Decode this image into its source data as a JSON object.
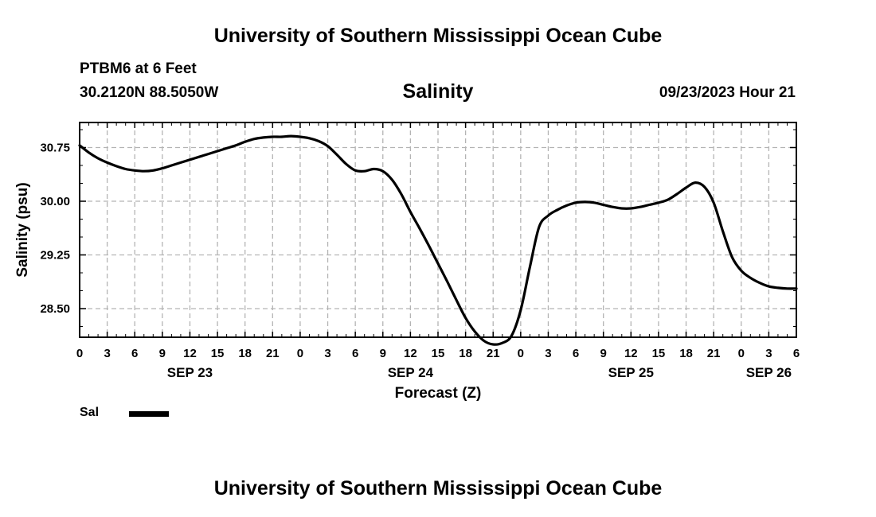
{
  "header": {
    "top_title": "University of Southern Mississippi Ocean Cube",
    "station": "PTBM6 at 6 Feet",
    "coords": "30.2120N  88.5050W",
    "timestamp": "09/23/2023 Hour 21"
  },
  "footer": {
    "bottom_title": "University of Southern Mississippi Ocean Cube"
  },
  "legend": {
    "label": "Sal"
  },
  "colors": {
    "line": "#000000",
    "grid": "#b4b4b4"
  },
  "chart_data": {
    "type": "line",
    "title": "Salinity",
    "xlabel": "Forecast (Z)",
    "ylabel": "Salinity (psu)",
    "xlim": [
      0,
      78
    ],
    "ylim": [
      28.1,
      31.1
    ],
    "grid": true,
    "y_ticks": [
      28.5,
      29.25,
      30.0,
      30.75
    ],
    "y_tick_labels": [
      "28.50",
      "29.25",
      "30.00",
      "30.75"
    ],
    "x_ticks": [
      0,
      3,
      6,
      9,
      12,
      15,
      18,
      21,
      24,
      27,
      30,
      33,
      36,
      39,
      42,
      45,
      48,
      51,
      54,
      57,
      60,
      63,
      66,
      69,
      72,
      75,
      78
    ],
    "x_tick_labels": [
      "0",
      "3",
      "6",
      "9",
      "12",
      "15",
      "18",
      "21",
      "0",
      "3",
      "6",
      "9",
      "12",
      "15",
      "18",
      "21",
      "0",
      "3",
      "6",
      "9",
      "12",
      "15",
      "18",
      "21",
      "0",
      "3",
      "6"
    ],
    "date_labels": [
      {
        "x": 12,
        "label": "SEP 23"
      },
      {
        "x": 36,
        "label": "SEP 24"
      },
      {
        "x": 60,
        "label": "SEP 25"
      },
      {
        "x": 75,
        "label": "SEP 26"
      }
    ],
    "series": [
      {
        "name": "Sal",
        "x": [
          0,
          1,
          2,
          3,
          4,
          5,
          6,
          7,
          8,
          9,
          10,
          11,
          12,
          13,
          14,
          15,
          16,
          17,
          18,
          19,
          20,
          21,
          22,
          23,
          24,
          25,
          26,
          27,
          28,
          29,
          30,
          31,
          32,
          33,
          34,
          35,
          36,
          37,
          38,
          39,
          40,
          41,
          42,
          43,
          44,
          45,
          46,
          47,
          48,
          49,
          50,
          51,
          52,
          53,
          54,
          55,
          56,
          57,
          58,
          59,
          60,
          61,
          62,
          63,
          64,
          65,
          66,
          67,
          68,
          69,
          70,
          71,
          72,
          73,
          74,
          75,
          76,
          77,
          78
        ],
        "values": [
          30.78,
          30.68,
          30.6,
          30.54,
          30.49,
          30.45,
          30.43,
          30.42,
          30.43,
          30.46,
          30.5,
          30.54,
          30.58,
          30.62,
          30.66,
          30.7,
          30.74,
          30.78,
          30.83,
          30.87,
          30.89,
          30.9,
          30.9,
          30.91,
          30.9,
          30.88,
          30.84,
          30.77,
          30.65,
          30.52,
          30.43,
          30.42,
          30.45,
          30.42,
          30.3,
          30.1,
          29.85,
          29.62,
          29.38,
          29.13,
          28.88,
          28.62,
          28.37,
          28.18,
          28.05,
          28.0,
          28.02,
          28.12,
          28.48,
          29.08,
          29.64,
          29.8,
          29.88,
          29.94,
          29.98,
          29.99,
          29.98,
          29.95,
          29.92,
          29.9,
          29.9,
          29.92,
          29.95,
          29.98,
          30.02,
          30.1,
          30.19,
          30.26,
          30.2,
          29.98,
          29.58,
          29.22,
          29.03,
          28.93,
          28.86,
          28.81,
          28.79,
          28.78,
          28.78
        ]
      }
    ]
  }
}
